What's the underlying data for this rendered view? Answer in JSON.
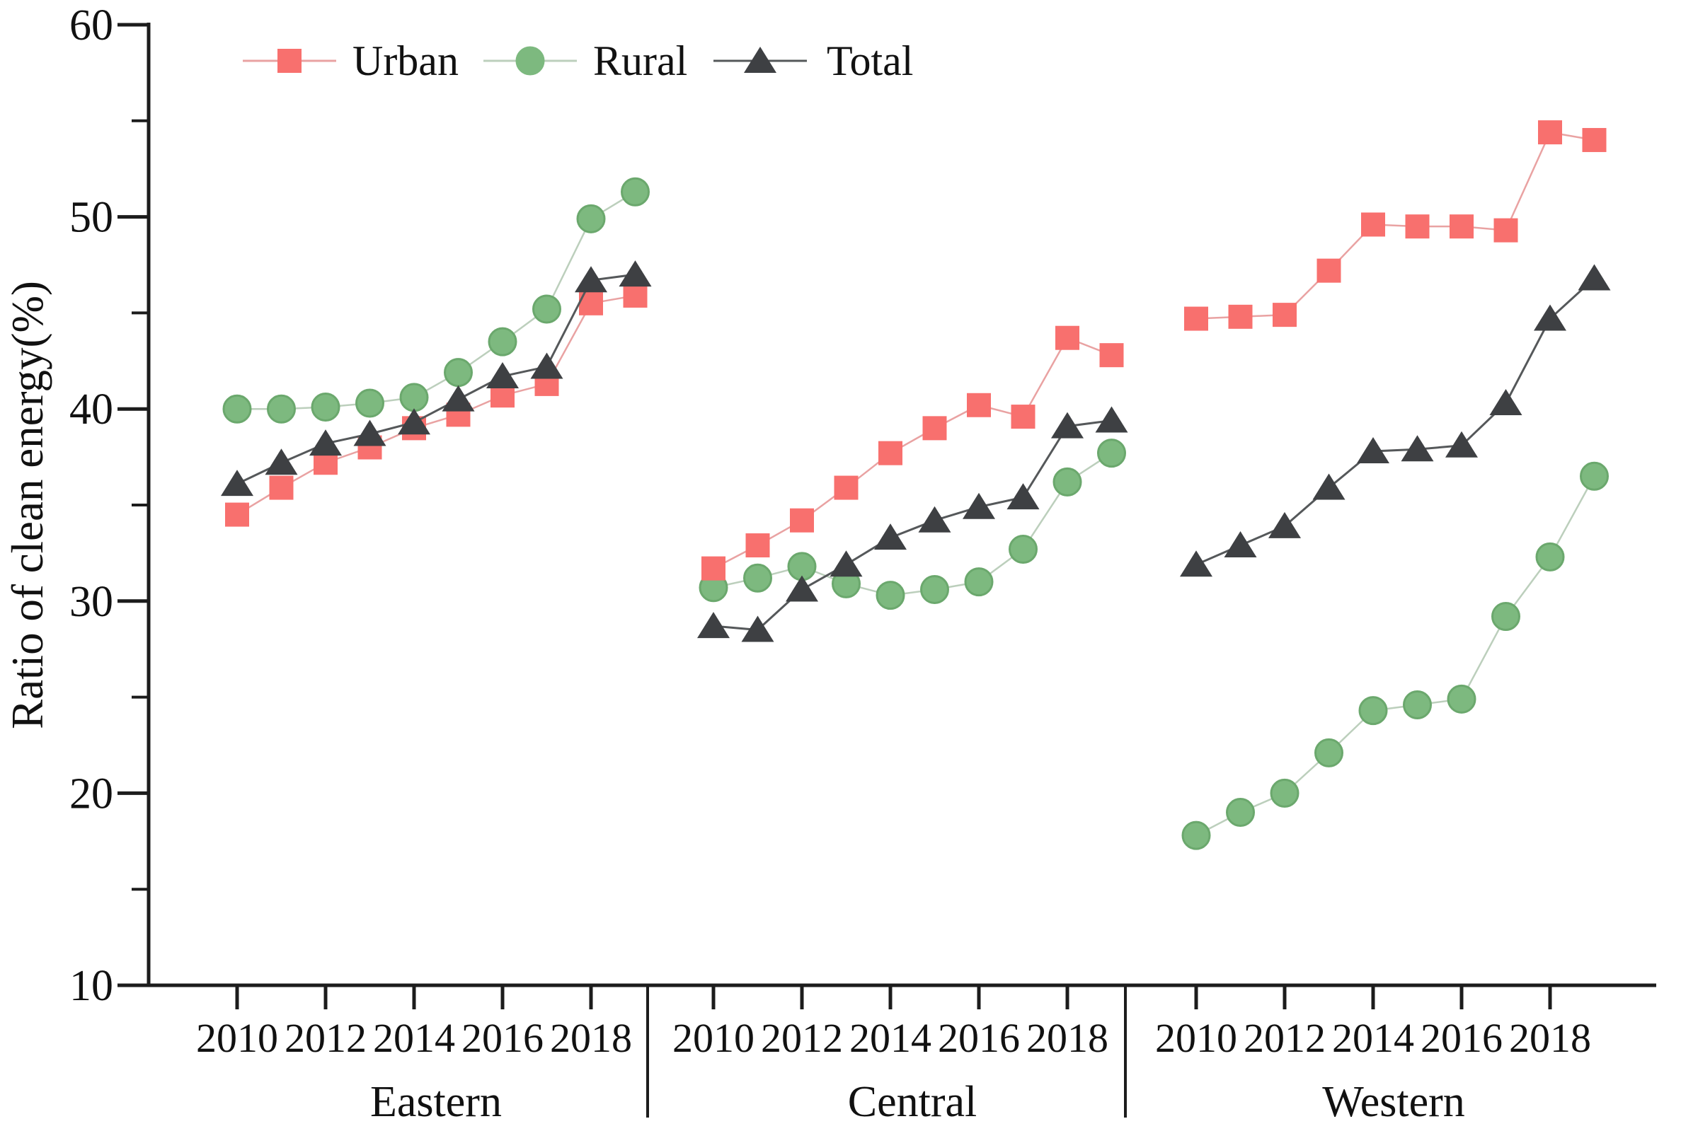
{
  "figure": {
    "background": "#ffffff",
    "axis_color": "#1c1c1c",
    "y_axis": {
      "title": "Ratio of clean energy(%)",
      "tick_labels": [
        "10",
        "20",
        "30",
        "40",
        "50",
        "60"
      ],
      "tick_values": [
        10,
        20,
        30,
        40,
        50,
        60
      ],
      "minor_tick_values": [
        15,
        25,
        35,
        45,
        55
      ]
    },
    "x_axis": {
      "tick_labels": [
        "2010",
        "2012",
        "2014",
        "2016",
        "2018"
      ],
      "tick_years": [
        2010,
        2012,
        2014,
        2016,
        2018
      ]
    },
    "legend": {
      "position": "top",
      "items": [
        {
          "label": "Urban",
          "marker": "square",
          "marker_color": "#f8706e",
          "line_color": "#e9a2a2"
        },
        {
          "label": "Rural",
          "marker": "circle",
          "marker_color": "#7db97f",
          "line_color": "#bccfbc"
        },
        {
          "label": "Total",
          "marker": "triangle",
          "marker_color": "#3e4043",
          "line_color": "#55585a"
        }
      ]
    }
  },
  "chart_data": {
    "type": "line",
    "title": "",
    "xlabel": "",
    "ylabel": "Ratio of clean energy(%)",
    "ylim": [
      10,
      60
    ],
    "grid": false,
    "legend_position": "top",
    "years": [
      2010,
      2011,
      2012,
      2013,
      2014,
      2015,
      2016,
      2017,
      2018,
      2019
    ],
    "panels": [
      {
        "name": "Eastern",
        "series": [
          {
            "name": "Urban",
            "marker": "square",
            "marker_color": "#f8706e",
            "line_color": "#e9a2a2",
            "values": [
              34.5,
              35.9,
              37.2,
              38.0,
              39.0,
              39.7,
              40.7,
              41.3,
              45.5,
              45.9
            ]
          },
          {
            "name": "Rural",
            "marker": "circle",
            "marker_color": "#7db97f",
            "edge_color": "#6ba86d",
            "line_color": "#bccfbc",
            "values": [
              40.0,
              40.0,
              40.1,
              40.3,
              40.6,
              41.9,
              43.5,
              45.2,
              49.9,
              51.3
            ]
          },
          {
            "name": "Total",
            "marker": "triangle",
            "marker_color": "#3e4043",
            "line_color": "#55585a",
            "values": [
              36.1,
              37.2,
              38.2,
              38.7,
              39.3,
              40.5,
              41.7,
              42.2,
              46.7,
              47.0
            ]
          }
        ]
      },
      {
        "name": "Central",
        "series": [
          {
            "name": "Urban",
            "marker": "square",
            "marker_color": "#f8706e",
            "line_color": "#e9a2a2",
            "values": [
              31.7,
              32.9,
              34.2,
              35.9,
              37.7,
              39.0,
              40.2,
              39.6,
              43.7,
              42.8
            ]
          },
          {
            "name": "Rural",
            "marker": "circle",
            "marker_color": "#7db97f",
            "edge_color": "#6ba86d",
            "line_color": "#bccfbc",
            "values": [
              30.7,
              31.2,
              31.8,
              30.9,
              30.3,
              30.6,
              31.0,
              32.7,
              36.2,
              37.7
            ]
          },
          {
            "name": "Total",
            "marker": "triangle",
            "marker_color": "#3e4043",
            "line_color": "#55585a",
            "values": [
              28.7,
              28.5,
              30.6,
              31.9,
              33.3,
              34.2,
              34.9,
              35.4,
              39.1,
              39.4
            ]
          }
        ]
      },
      {
        "name": "Western",
        "series": [
          {
            "name": "Urban",
            "marker": "square",
            "marker_color": "#f8706e",
            "line_color": "#e9a2a2",
            "values": [
              44.7,
              44.8,
              44.9,
              47.2,
              49.6,
              49.5,
              49.5,
              49.3,
              54.4,
              54.0
            ]
          },
          {
            "name": "Rural",
            "marker": "circle",
            "marker_color": "#7db97f",
            "edge_color": "#6ba86d",
            "line_color": "#bccfbc",
            "values": [
              17.8,
              19.0,
              20.0,
              22.1,
              24.3,
              24.6,
              24.9,
              29.2,
              32.3,
              36.5
            ]
          },
          {
            "name": "Total",
            "marker": "triangle",
            "marker_color": "#3e4043",
            "line_color": "#55585a",
            "values": [
              31.9,
              32.9,
              33.9,
              35.9,
              37.8,
              37.9,
              38.1,
              40.3,
              44.7,
              46.8
            ]
          }
        ]
      }
    ]
  }
}
